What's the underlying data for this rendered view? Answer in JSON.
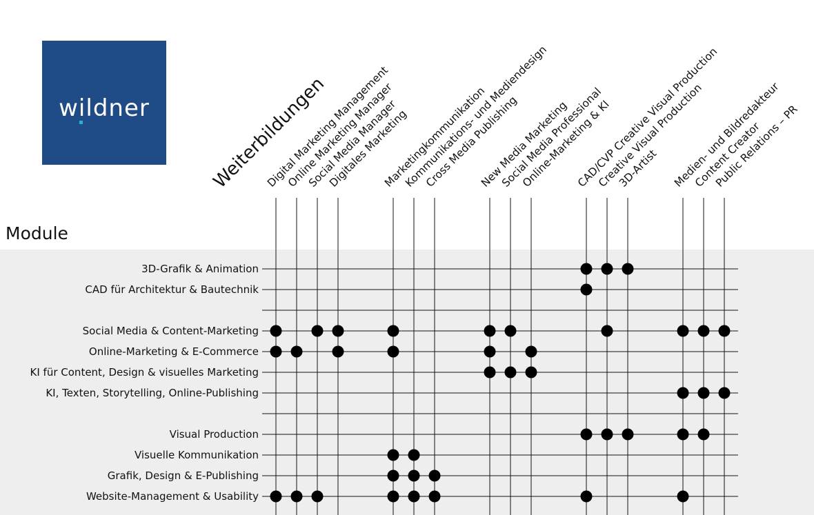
{
  "logo": {
    "text": "wildner",
    "bg_color": "#1f4b87",
    "dot_color": "#2ab3c3"
  },
  "header_title": "Weiterbildungen",
  "module_title": "Module",
  "columns": [
    "Digital Marketing Management",
    "Online Marketing Manager",
    "Social Media Manager",
    "Digitales Marketing",
    "Marketingkommunikation",
    "Kommunikations- und Mediendesign",
    "Cross Media Publishing",
    "New Media Marketing",
    "Social Media Professional",
    "Online-Marketing & KI",
    "CAD/CVP Creative Visual Production",
    "Creative Visual Production",
    "3D-Artist",
    "Medien- und Bildredakteur",
    "Content Creator",
    "Public Relations – PR"
  ],
  "rows": [
    {
      "label": "3D-Grafik & Animation",
      "marks": [
        10,
        11,
        12
      ]
    },
    {
      "label": "CAD für Architektur & Bautechnik",
      "marks": [
        10
      ]
    },
    {
      "label": "",
      "marks": []
    },
    {
      "label": "Social Media & Content-Marketing",
      "marks": [
        0,
        2,
        3,
        4,
        7,
        8,
        11,
        13,
        14,
        15
      ]
    },
    {
      "label": "Online-Marketing & E-Commerce",
      "marks": [
        0,
        1,
        3,
        4,
        7,
        9
      ]
    },
    {
      "label": "KI für Content, Design & visuelles Marketing",
      "marks": [
        7,
        8,
        9
      ]
    },
    {
      "label": "KI, Texten, Storytelling, Online-Publishing",
      "marks": [
        13,
        14,
        15
      ]
    },
    {
      "label": "",
      "marks": []
    },
    {
      "label": "Visual Production",
      "marks": [
        10,
        11,
        12,
        13,
        14
      ]
    },
    {
      "label": "Visuelle Kommunikation",
      "marks": [
        4,
        5
      ]
    },
    {
      "label": "Grafik, Design & E-Publishing",
      "marks": [
        4,
        5,
        6
      ]
    },
    {
      "label": "Website-Management & Usability",
      "marks": [
        0,
        1,
        2,
        4,
        5,
        6,
        10,
        13
      ]
    }
  ]
}
